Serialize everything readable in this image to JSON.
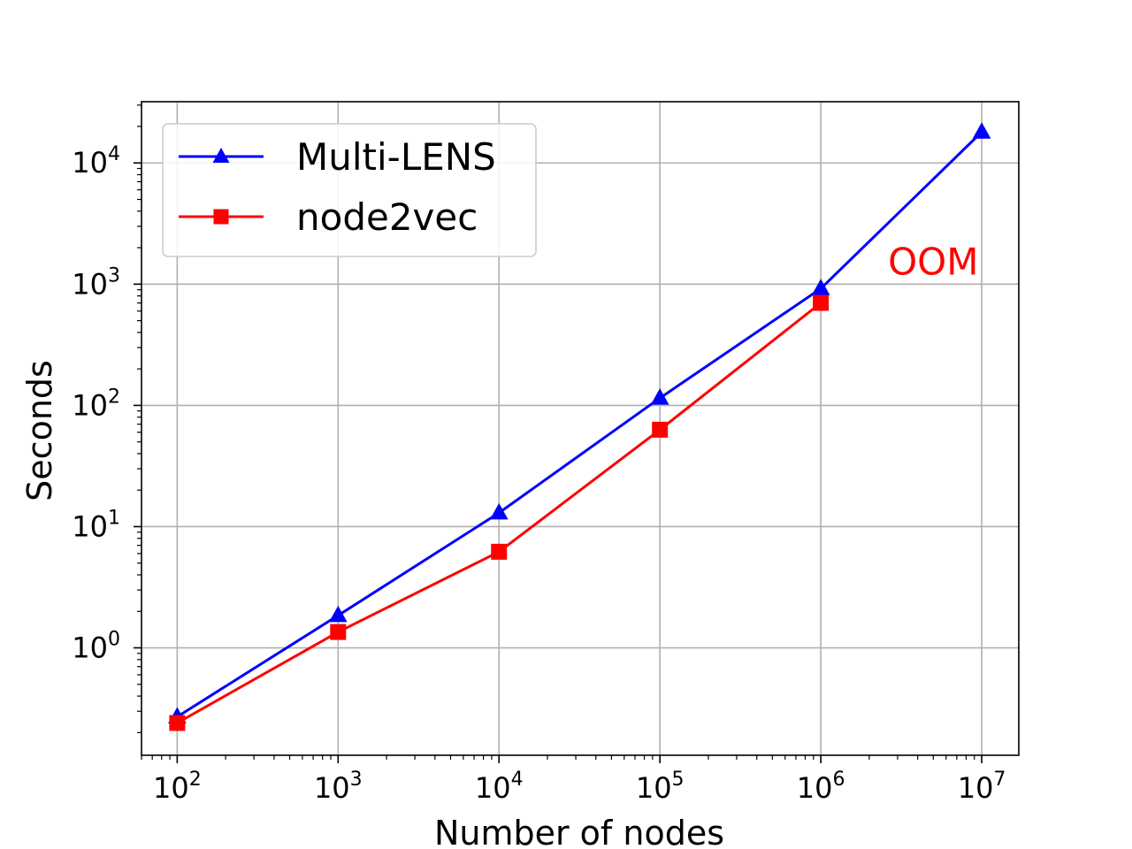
{
  "chart_data": {
    "type": "line",
    "xlabel": "Number of nodes",
    "ylabel": "Seconds",
    "x_scale": "log",
    "y_scale": "log",
    "grid": true,
    "legend_position": "top-left",
    "xlim": [
      60,
      17000000
    ],
    "ylim": [
      0.13,
      32000
    ],
    "x_ticks": [
      {
        "value": 100,
        "base": "10",
        "exp": "2"
      },
      {
        "value": 1000,
        "base": "10",
        "exp": "3"
      },
      {
        "value": 10000,
        "base": "10",
        "exp": "4"
      },
      {
        "value": 100000,
        "base": "10",
        "exp": "5"
      },
      {
        "value": 1000000,
        "base": "10",
        "exp": "6"
      },
      {
        "value": 10000000,
        "base": "10",
        "exp": "7"
      }
    ],
    "y_ticks": [
      {
        "value": 1,
        "base": "10",
        "exp": "0"
      },
      {
        "value": 10,
        "base": "10",
        "exp": "1"
      },
      {
        "value": 100,
        "base": "10",
        "exp": "2"
      },
      {
        "value": 1000,
        "base": "10",
        "exp": "3"
      },
      {
        "value": 10000,
        "base": "10",
        "exp": "4"
      }
    ],
    "series": [
      {
        "name": "Multi-LENS",
        "color": "#0000ff",
        "marker": "triangle",
        "x": [
          100,
          1000,
          10000,
          100000,
          1000000,
          10000000
        ],
        "y": [
          0.27,
          1.85,
          13,
          115,
          920,
          18000
        ]
      },
      {
        "name": "node2vec",
        "color": "#ff0000",
        "marker": "square",
        "x": [
          100,
          1000,
          10000,
          100000,
          1000000
        ],
        "y": [
          0.24,
          1.35,
          6.2,
          63,
          700
        ]
      }
    ],
    "annotations": [
      {
        "text": "OOM",
        "x": 5000000,
        "y": 1200,
        "color": "#ff0000"
      }
    ]
  }
}
